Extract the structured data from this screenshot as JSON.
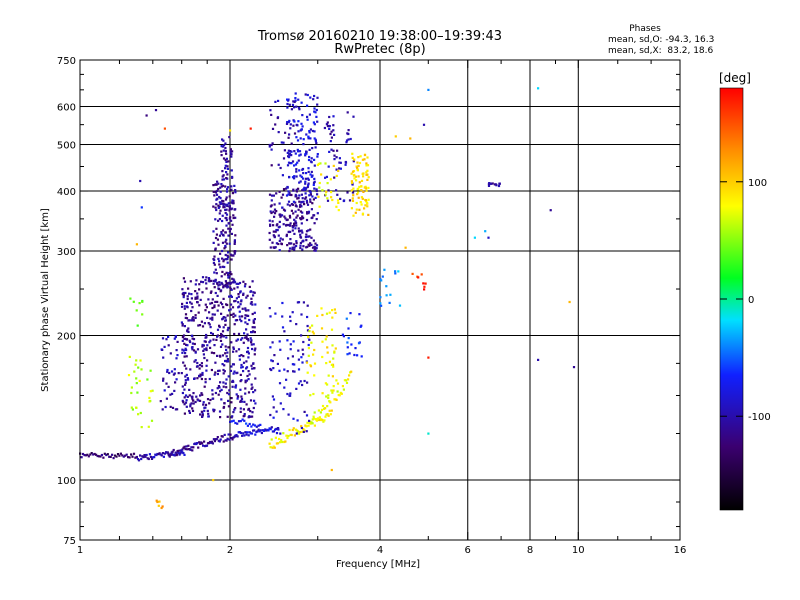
{
  "chart_data": {
    "type": "scatter",
    "title": "Tromsø 20160210 19:38:00–19:39:43",
    "subtitle": "RwPretec (8p)",
    "stats": {
      "heading": "Phases",
      "line_o": "mean, sd,O: -94.3, 16.3",
      "line_x": "mean, sd,X:  83.2, 18.6"
    },
    "xlabel": "Frequency [MHz]",
    "ylabel": "Stationary phase Virtual Height [km]",
    "x_scale": "log",
    "y_scale": "log",
    "xlim": [
      1,
      16
    ],
    "ylim": [
      75,
      750
    ],
    "x_ticks": [
      1,
      2,
      4,
      6,
      8,
      10,
      16
    ],
    "x_tick_labels": [
      "1",
      "2",
      "4",
      "6",
      "8",
      "10",
      "16"
    ],
    "x_minor_ticks": [
      1.2,
      1.4,
      1.6,
      1.8,
      3,
      5,
      7,
      9,
      12,
      14
    ],
    "y_ticks": [
      75,
      100,
      200,
      300,
      400,
      500,
      600,
      750
    ],
    "y_tick_labels": [
      "75",
      "100",
      "200",
      "300",
      "400",
      "500",
      "600",
      "750"
    ],
    "y_minor_ticks": [
      80,
      90,
      125,
      150,
      175,
      250,
      350,
      450,
      550,
      650,
      700
    ],
    "x_gridlines": [
      2,
      4,
      6,
      8,
      10
    ],
    "y_gridlines": [
      100,
      200,
      300,
      400,
      500,
      600
    ],
    "grid": true,
    "colorbar": {
      "label": "[deg]",
      "range": [
        -180,
        180
      ],
      "ticks": [
        100,
        0,
        -100
      ],
      "tick_labels": [
        "100",
        "0",
        "-100"
      ]
    },
    "clusters": [
      {
        "kind": "line",
        "x0": 1.0,
        "x1": 1.3,
        "y0": 113,
        "y1": 112,
        "phase": -125,
        "n": 40,
        "dy": 1.5
      },
      {
        "kind": "line",
        "x0": 1.3,
        "x1": 1.62,
        "y0": 111,
        "y1": 114,
        "phase": -100,
        "n": 45,
        "dy": 1.5
      },
      {
        "kind": "line",
        "x0": 1.5,
        "x1": 2.05,
        "y0": 113,
        "y1": 124,
        "phase": -110,
        "n": 70,
        "dy": 2
      },
      {
        "kind": "line",
        "x0": 2.05,
        "x1": 2.5,
        "y0": 124,
        "y1": 128,
        "phase": -85,
        "n": 40,
        "dy": 1.5
      },
      {
        "kind": "line",
        "x0": 2.4,
        "x1": 3.2,
        "y0": 118,
        "y1": 138,
        "phase": 85,
        "n": 60,
        "dy": 3
      },
      {
        "kind": "line",
        "x0": 2.9,
        "x1": 3.5,
        "y0": 130,
        "y1": 165,
        "phase": 80,
        "n": 40,
        "dy": 6
      },
      {
        "kind": "line",
        "x0": 2.0,
        "x1": 2.3,
        "y0": 133,
        "y1": 130,
        "phase": -70,
        "n": 18,
        "dy": 2
      },
      {
        "kind": "box",
        "x0": 1.6,
        "x1": 2.25,
        "y0": 135,
        "y1": 265,
        "phase": -110,
        "n": 520
      },
      {
        "kind": "box",
        "x0": 1.85,
        "x1": 2.05,
        "y0": 250,
        "y1": 420,
        "phase": -110,
        "n": 200
      },
      {
        "kind": "box",
        "x0": 1.92,
        "x1": 2.02,
        "y0": 420,
        "y1": 520,
        "phase": -105,
        "n": 40
      },
      {
        "kind": "box",
        "x0": 1.45,
        "x1": 1.65,
        "y0": 140,
        "y1": 200,
        "phase": -100,
        "n": 60
      },
      {
        "kind": "box",
        "x0": 1.25,
        "x1": 1.4,
        "y0": 125,
        "y1": 185,
        "phase": 60,
        "n": 30
      },
      {
        "kind": "box",
        "x0": 1.25,
        "x1": 1.35,
        "y0": 205,
        "y1": 240,
        "phase": 40,
        "n": 8
      },
      {
        "kind": "box",
        "x0": 2.4,
        "x1": 3.0,
        "y0": 300,
        "y1": 405,
        "phase": -110,
        "n": 230
      },
      {
        "kind": "box",
        "x0": 2.6,
        "x1": 3.0,
        "y0": 380,
        "y1": 640,
        "phase": -85,
        "n": 170
      },
      {
        "kind": "box",
        "x0": 2.4,
        "x1": 2.7,
        "y0": 430,
        "y1": 620,
        "phase": -105,
        "n": 35
      },
      {
        "kind": "box",
        "x0": 3.1,
        "x1": 3.55,
        "y0": 380,
        "y1": 600,
        "phase": -100,
        "n": 60
      },
      {
        "kind": "box",
        "x0": 3.5,
        "x1": 3.8,
        "y0": 355,
        "y1": 480,
        "phase": 95,
        "n": 85
      },
      {
        "kind": "box",
        "x0": 3.0,
        "x1": 3.35,
        "y0": 360,
        "y1": 460,
        "phase": 80,
        "n": 25
      },
      {
        "kind": "box",
        "x0": 2.4,
        "x1": 2.9,
        "y0": 125,
        "y1": 235,
        "phase": -90,
        "n": 90
      },
      {
        "kind": "box",
        "x0": 2.85,
        "x1": 3.3,
        "y0": 150,
        "y1": 230,
        "phase": 85,
        "n": 55
      },
      {
        "kind": "box",
        "x0": 2.0,
        "x1": 2.25,
        "y0": 140,
        "y1": 260,
        "phase": -100,
        "n": 40
      },
      {
        "kind": "box",
        "x0": 3.35,
        "x1": 3.7,
        "y0": 180,
        "y1": 230,
        "phase": -60,
        "n": 20
      },
      {
        "kind": "box",
        "x0": 4.0,
        "x1": 4.4,
        "y0": 230,
        "y1": 280,
        "phase": -40,
        "n": 15
      },
      {
        "kind": "box",
        "x0": 4.55,
        "x1": 5.0,
        "y0": 245,
        "y1": 270,
        "phase": 160,
        "n": 8
      },
      {
        "kind": "box",
        "x0": 6.6,
        "x1": 7.0,
        "y0": 410,
        "y1": 416,
        "phase": -110,
        "n": 14
      },
      {
        "kind": "box",
        "x0": 1.42,
        "x1": 1.48,
        "y0": 87,
        "y1": 91,
        "phase": 120,
        "n": 6
      }
    ],
    "points": [
      {
        "x": 1.36,
        "y": 575,
        "phase": -120
      },
      {
        "x": 1.42,
        "y": 590,
        "phase": -110
      },
      {
        "x": 1.48,
        "y": 540,
        "phase": 150
      },
      {
        "x": 1.3,
        "y": 310,
        "phase": 110
      },
      {
        "x": 1.32,
        "y": 420,
        "phase": -100
      },
      {
        "x": 1.33,
        "y": 370,
        "phase": -60
      },
      {
        "x": 4.9,
        "y": 550,
        "phase": -100
      },
      {
        "x": 5.0,
        "y": 650,
        "phase": -40
      },
      {
        "x": 4.6,
        "y": 515,
        "phase": 110
      },
      {
        "x": 4.3,
        "y": 520,
        "phase": 100
      },
      {
        "x": 6.2,
        "y": 320,
        "phase": -20
      },
      {
        "x": 6.5,
        "y": 330,
        "phase": -30
      },
      {
        "x": 6.6,
        "y": 320,
        "phase": -90
      },
      {
        "x": 8.3,
        "y": 655,
        "phase": -20
      },
      {
        "x": 8.8,
        "y": 365,
        "phase": -110
      },
      {
        "x": 9.6,
        "y": 235,
        "phase": 110
      },
      {
        "x": 8.3,
        "y": 178,
        "phase": -100
      },
      {
        "x": 9.8,
        "y": 172,
        "phase": -110
      },
      {
        "x": 5.0,
        "y": 180,
        "phase": 170
      },
      {
        "x": 5.0,
        "y": 125,
        "phase": -10
      },
      {
        "x": 1.85,
        "y": 100,
        "phase": 100
      },
      {
        "x": 2.0,
        "y": 535,
        "phase": 90
      },
      {
        "x": 2.2,
        "y": 540,
        "phase": 170
      },
      {
        "x": 4.5,
        "y": 305,
        "phase": 110
      },
      {
        "x": 3.2,
        "y": 105,
        "phase": 110
      }
    ]
  }
}
